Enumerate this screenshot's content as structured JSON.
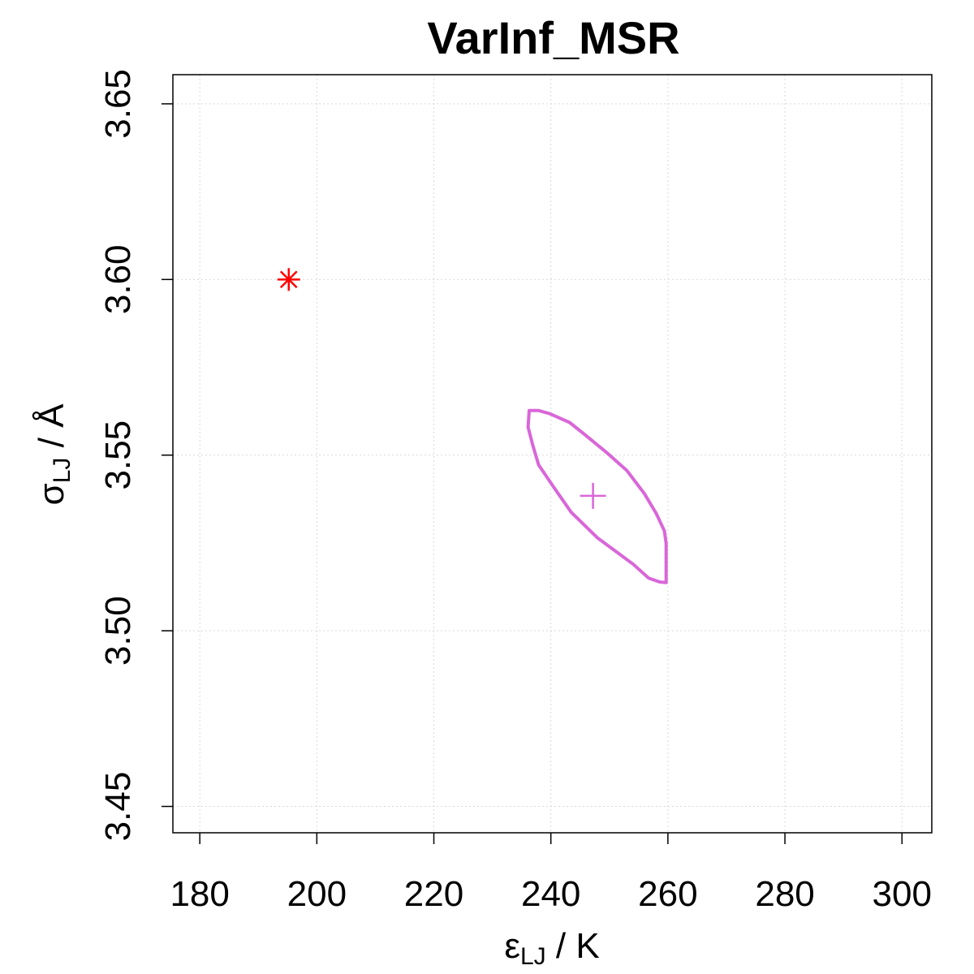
{
  "chart_data": {
    "type": "scatter",
    "title": "VarInf_MSR",
    "xlabel": {
      "main": "ε",
      "sub": "LJ",
      "suffix": " / K"
    },
    "ylabel": {
      "main": "σ",
      "sub": "LJ",
      "suffix": " / Å"
    },
    "xlim": [
      175.4,
      305.1
    ],
    "ylim": [
      3.4425,
      3.6583
    ],
    "x_ticks": [
      180,
      200,
      220,
      240,
      260,
      280,
      300
    ],
    "x_tick_labels": [
      "180",
      "200",
      "220",
      "240",
      "260",
      "280",
      "300"
    ],
    "y_ticks": [
      3.45,
      3.5,
      3.55,
      3.6,
      3.65
    ],
    "y_tick_labels": [
      "3.45",
      "3.50",
      "3.55",
      "3.60",
      "3.65"
    ],
    "grid": true,
    "reference_point": {
      "x": 195.2,
      "y": 3.6,
      "marker": "asterisk",
      "color": "#ff0000"
    },
    "estimate_point": {
      "x": 247.2,
      "y": 3.5384,
      "marker": "plus",
      "color": "#d966d9"
    },
    "confidence_region": {
      "color": "#d966d9",
      "points": [
        [
          236.3,
          3.5627
        ],
        [
          237.9,
          3.5627
        ],
        [
          239.8,
          3.5618
        ],
        [
          243.2,
          3.5593
        ],
        [
          245.6,
          3.5561
        ],
        [
          249.4,
          3.5509
        ],
        [
          253.0,
          3.5456
        ],
        [
          256.0,
          3.539
        ],
        [
          258.0,
          3.5334
        ],
        [
          259.4,
          3.5284
        ],
        [
          259.7,
          3.5249
        ],
        [
          259.7,
          3.5137
        ],
        [
          258.6,
          3.5139
        ],
        [
          256.7,
          3.515
        ],
        [
          254.1,
          3.5189
        ],
        [
          248.0,
          3.5264
        ],
        [
          243.5,
          3.5337
        ],
        [
          240.6,
          3.5406
        ],
        [
          237.9,
          3.5472
        ],
        [
          236.9,
          3.5528
        ],
        [
          236.1,
          3.558
        ],
        [
          236.3,
          3.5627
        ]
      ]
    }
  }
}
